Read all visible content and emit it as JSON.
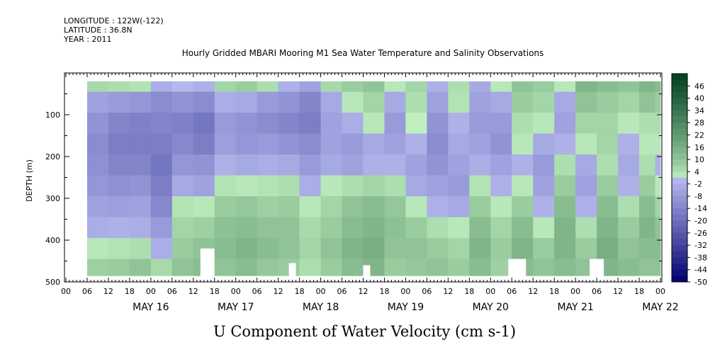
{
  "header": {
    "longitude": "LONGITUDE : 122W(-122)",
    "latitude": "LATITUDE : 36.8N",
    "year": "YEAR : 2011"
  },
  "title": "Hourly Gridded MBARI Mooring M1 Sea Water Temperature and Salinity Observations",
  "subtitle": "U Component of Water Velocity (cm s-1)",
  "colors": {
    "negative_dark": "#000070",
    "negative_light": "#b8bcf0",
    "positive_light": "#c0f0c0",
    "positive_dark": "#004020"
  },
  "chart_data": {
    "type": "heatmap",
    "title": "Hourly Gridded MBARI Mooring M1 Sea Water Temperature and Salinity Observations",
    "xlabel": "",
    "ylabel": "DEPTH (m)",
    "colorbar_label": "U Component of Water Velocity (cm s-1)",
    "ylim": [
      500,
      0
    ],
    "xlim": [
      "2011-05-15T00:00",
      "2011-05-22T00:00"
    ],
    "y_ticks": [
      "100",
      "200",
      "300",
      "400",
      "500"
    ],
    "x_hour_ticks": [
      "00",
      "06",
      "12",
      "18",
      "00",
      "06",
      "12",
      "18",
      "00",
      "06",
      "12",
      "18",
      "00",
      "06",
      "12",
      "18",
      "00",
      "06",
      "12",
      "18",
      "00",
      "06",
      "12",
      "18",
      "00",
      "06",
      "12",
      "18",
      "00"
    ],
    "x_day_labels": [
      "MAY 16",
      "MAY 17",
      "MAY 18",
      "MAY 19",
      "MAY 20",
      "MAY 21",
      "MAY 22"
    ],
    "colorbar_ticks": [
      "46",
      "40",
      "34",
      "28",
      "22",
      "16",
      "10",
      "4",
      "-2",
      "-8",
      "-14",
      "-20",
      "-26",
      "-32",
      "-38",
      "-44",
      "-50"
    ],
    "colorbar_range": [
      -50,
      52
    ],
    "data_depth_range": [
      20,
      485
    ],
    "column_times_hours": [
      9,
      15,
      21,
      27,
      33,
      39,
      45,
      51,
      57,
      63,
      69,
      75,
      81,
      87,
      93,
      99,
      105,
      111,
      117,
      123,
      129,
      135,
      141,
      147,
      153,
      159,
      165,
      168
    ],
    "row_depths_m": [
      20,
      70,
      120,
      170,
      220,
      270,
      320,
      370,
      420,
      470
    ],
    "u_values": [
      [
        5,
        -6,
        -10,
        -12,
        -11,
        -9,
        -6,
        -3,
        2,
        7
      ],
      [
        4,
        -8,
        -14,
        -16,
        -14,
        -11,
        -7,
        -2,
        3,
        8
      ],
      [
        3,
        -9,
        -15,
        -16,
        -14,
        -10,
        -6,
        -3,
        4,
        10
      ],
      [
        -3,
        -12,
        -14,
        -16,
        -18,
        -16,
        -13,
        -8,
        -3,
        5
      ],
      [
        0,
        -10,
        -15,
        -13,
        -9,
        -4,
        3,
        6,
        8,
        10
      ],
      [
        -2,
        -12,
        -18,
        -16,
        -10,
        -6,
        2,
        7,
        10,
        12
      ],
      [
        6,
        -3,
        -8,
        -7,
        -2,
        3,
        8,
        11,
        12,
        10
      ],
      [
        8,
        -4,
        -10,
        -9,
        -4,
        2,
        9,
        12,
        14,
        12
      ],
      [
        4,
        -8,
        -12,
        -8,
        -3,
        3,
        7,
        10,
        12,
        9
      ],
      [
        -2,
        -10,
        -14,
        -10,
        -4,
        4,
        8,
        10,
        10,
        8
      ],
      [
        -6,
        -14,
        -16,
        -12,
        -8,
        -3,
        2,
        5,
        6,
        4
      ],
      [
        5,
        -4,
        -6,
        -6,
        -4,
        2,
        6,
        8,
        10,
        8
      ],
      [
        8,
        2,
        -3,
        -8,
        -6,
        4,
        10,
        12,
        14,
        12
      ],
      [
        10,
        6,
        2,
        -4,
        -2,
        6,
        12,
        14,
        16,
        14
      ],
      [
        2,
        -4,
        -8,
        -6,
        -2,
        4,
        9,
        11,
        10,
        8
      ],
      [
        6,
        4,
        1,
        -2,
        -6,
        -4,
        2,
        8,
        10,
        9
      ],
      [
        -2,
        -6,
        -10,
        -12,
        -10,
        -6,
        -2,
        4,
        8,
        10
      ],
      [
        4,
        3,
        -2,
        -4,
        -6,
        -8,
        -4,
        2,
        6,
        8
      ],
      [
        -4,
        -6,
        -8,
        -6,
        -3,
        3,
        8,
        12,
        14,
        12
      ],
      [
        2,
        -4,
        -8,
        -10,
        -6,
        -2,
        2,
        6,
        8,
        7
      ],
      [
        10,
        8,
        4,
        2,
        -2,
        2,
        8,
        12,
        14,
        12
      ],
      [
        8,
        6,
        2,
        -4,
        -8,
        -6,
        -2,
        2,
        8,
        10
      ],
      [
        2,
        -4,
        -6,
        -2,
        4,
        8,
        12,
        14,
        14,
        12
      ],
      [
        14,
        10,
        6,
        2,
        -4,
        -6,
        -2,
        4,
        8,
        10
      ],
      [
        12,
        8,
        6,
        6,
        4,
        8,
        12,
        14,
        16,
        14
      ],
      [
        10,
        6,
        2,
        -2,
        -4,
        -2,
        4,
        8,
        10,
        12
      ],
      [
        14,
        10,
        4,
        2,
        4,
        8,
        12,
        14,
        12,
        10
      ],
      [
        12,
        8,
        4,
        2,
        -2,
        2,
        6,
        10,
        12,
        10
      ]
    ],
    "masked_bottom_gaps": [
      {
        "hour_start": 38,
        "hour_end": 42,
        "depth_top": 420
      },
      {
        "hour_start": 63,
        "hour_end": 65,
        "depth_top": 455
      },
      {
        "hour_start": 84,
        "hour_end": 86,
        "depth_top": 460
      },
      {
        "hour_start": 125,
        "hour_end": 130,
        "depth_top": 445
      },
      {
        "hour_start": 148,
        "hour_end": 152,
        "depth_top": 445
      }
    ],
    "grid": false,
    "legend": "right colorbar"
  }
}
